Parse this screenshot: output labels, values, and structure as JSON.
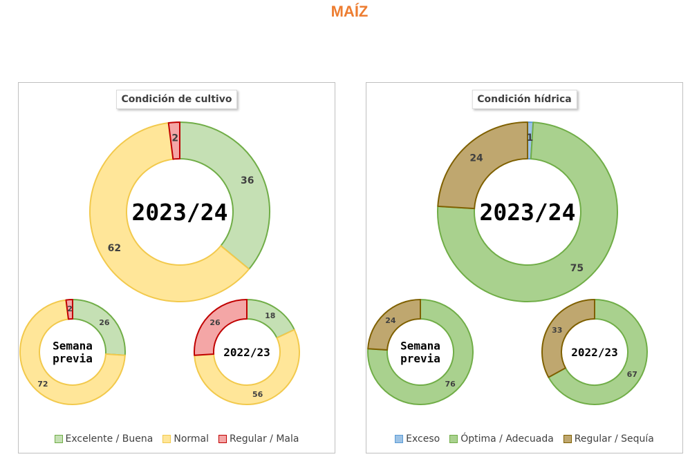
{
  "page": {
    "title": "MAÍZ"
  },
  "chart_data": [
    {
      "type": "pie",
      "title": "Condición de cultivo",
      "legend_placement": "bottom",
      "categories": [
        "Excelente / Buena",
        "Normal",
        "Regular / Mala"
      ],
      "colors": {
        "fill": [
          "#C5E0B4",
          "#FFE699",
          "#F4A6A6"
        ],
        "stroke": [
          "#70AD47",
          "#F2C94C",
          "#C00000"
        ]
      },
      "rings": [
        {
          "label": "2023/24",
          "values": [
            36,
            62,
            2
          ]
        },
        {
          "label": "Semana previa",
          "label_lines": [
            "Semana",
            "previa"
          ],
          "values": [
            26,
            72,
            2
          ]
        },
        {
          "label": "2022/23",
          "values": [
            18,
            56,
            26
          ]
        }
      ]
    },
    {
      "type": "pie",
      "title": "Condición hídrica",
      "legend_placement": "bottom",
      "categories": [
        "Exceso",
        "Óptima / Adecuada",
        "Regular / Sequía"
      ],
      "colors": {
        "fill": [
          "#9DC3E6",
          "#A9D18E",
          "#BFA76F"
        ],
        "stroke": [
          "#5B9BD5",
          "#70AD47",
          "#7F6000"
        ]
      },
      "rings": [
        {
          "label": "2023/24",
          "values": [
            1,
            75,
            24
          ]
        },
        {
          "label": "Semana previa",
          "label_lines": [
            "Semana",
            "previa"
          ],
          "values": [
            0,
            76,
            24
          ]
        },
        {
          "label": "2022/23",
          "values": [
            0,
            67,
            33
          ]
        }
      ]
    }
  ]
}
